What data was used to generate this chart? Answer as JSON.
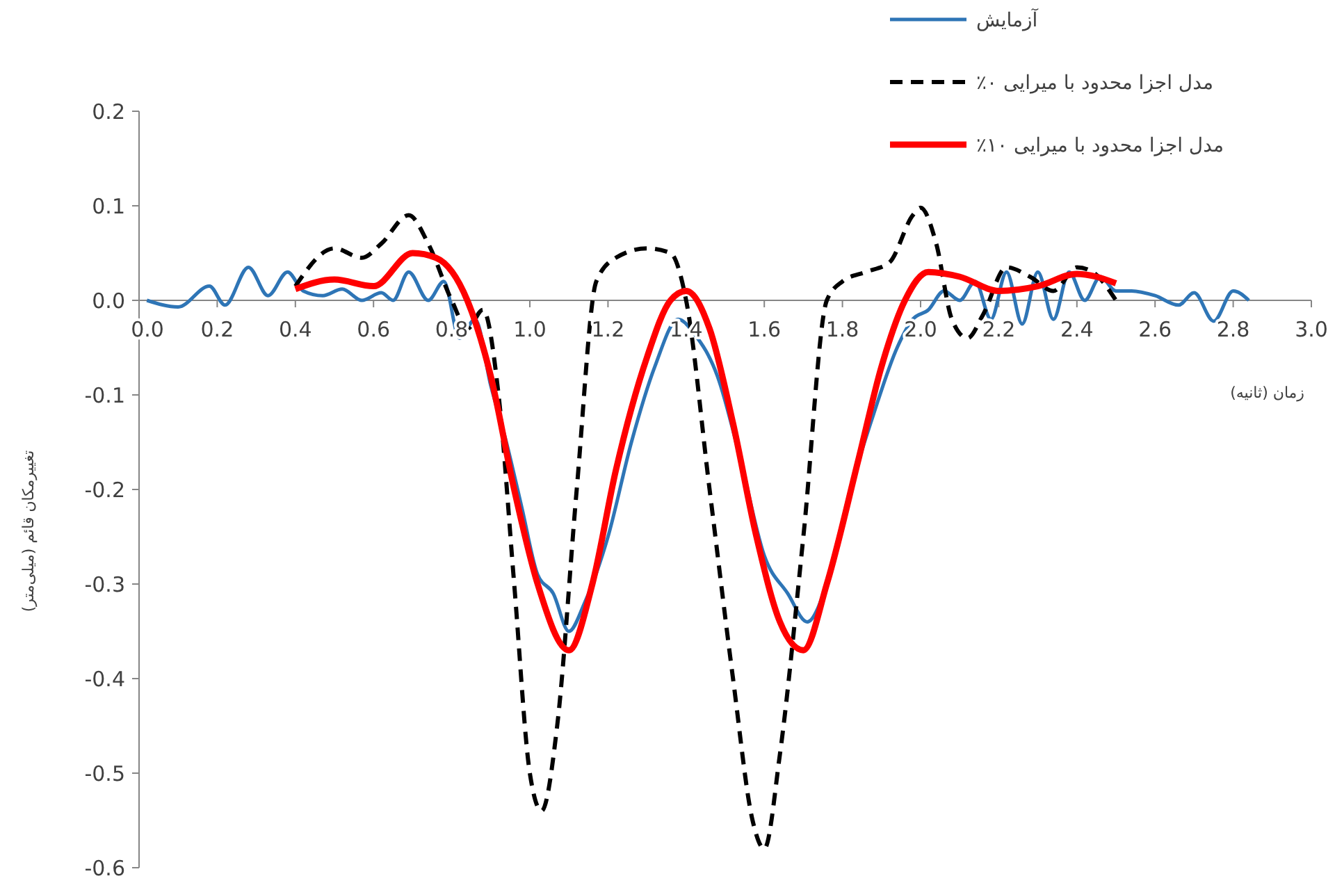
{
  "chart_data": {
    "type": "line",
    "xlabel": "زمان (ثانیه)",
    "ylabel": "تغییرمکان قائم (میلی‌متر)",
    "xlim": [
      0,
      3
    ],
    "ylim": [
      -0.6,
      0.2
    ],
    "xticks": [
      {
        "value": 0,
        "label": "0.0"
      },
      0.2,
      0.4,
      0.6,
      0.8,
      {
        "value": 1,
        "label": "1.0"
      },
      1.2,
      1.4,
      1.6,
      1.8,
      {
        "value": 2,
        "label": "2.0"
      },
      2.2,
      2.4,
      2.6,
      2.8,
      {
        "value": 3,
        "label": "3.0"
      }
    ],
    "yticks": [
      0.2,
      0.1,
      {
        "value": 0,
        "label": "0.0"
      },
      -0.1,
      -0.2,
      -0.3,
      -0.4,
      -0.5,
      -0.6
    ],
    "grid": false,
    "legend": "top right",
    "marker": "none",
    "series": [
      {
        "name": "آزمایش",
        "color": "#2e75b6",
        "line_style": "solid",
        "x": [
          0.02,
          0.1,
          0.18,
          0.22,
          0.28,
          0.33,
          0.38,
          0.42,
          0.47,
          0.52,
          0.57,
          0.62,
          0.65,
          0.69,
          0.74,
          0.78,
          0.82,
          0.86,
          0.9,
          0.94,
          0.98,
          1.02,
          1.06,
          1.1,
          1.14,
          1.2,
          1.26,
          1.32,
          1.38,
          1.42,
          1.48,
          1.54,
          1.6,
          1.66,
          1.71,
          1.76,
          1.82,
          1.88,
          1.94,
          1.98,
          2.02,
          2.06,
          2.1,
          2.14,
          2.18,
          2.22,
          2.26,
          2.3,
          2.34,
          2.38,
          2.42,
          2.46,
          2.5,
          2.54,
          2.6,
          2.66,
          2.7,
          2.75,
          2.8,
          2.84
        ],
        "values": [
          0,
          -0.007,
          0.015,
          -0.005,
          0.035,
          0.005,
          0.03,
          0.01,
          0.005,
          0.012,
          0,
          0.008,
          0,
          0.03,
          0,
          0.02,
          -0.04,
          -0.02,
          -0.09,
          -0.15,
          -0.22,
          -0.29,
          -0.31,
          -0.35,
          -0.32,
          -0.25,
          -0.15,
          -0.07,
          -0.02,
          -0.035,
          -0.08,
          -0.17,
          -0.27,
          -0.31,
          -0.34,
          -0.3,
          -0.2,
          -0.12,
          -0.05,
          -0.02,
          -0.01,
          0.01,
          0,
          0.02,
          -0.02,
          0.03,
          -0.025,
          0.03,
          -0.02,
          0.03,
          0,
          0.025,
          0.01,
          0.01,
          0.005,
          -0.005,
          0.008,
          -0.022,
          0.01,
          0
        ]
      },
      {
        "name": "مدل اجزا محدود با میرایی ۰٪",
        "color": "#000000",
        "line_style": "dashed",
        "x": [
          0.4,
          0.5,
          0.57,
          0.62,
          0.69,
          0.74,
          0.8,
          0.84,
          0.88,
          0.92,
          0.96,
          1.0,
          1.03,
          1.07,
          1.12,
          1.17,
          1.22,
          1.3,
          1.36,
          1.4,
          1.46,
          1.52,
          1.57,
          1.6,
          1.64,
          1.7,
          1.76,
          1.8,
          1.86,
          1.92,
          1.98,
          2.0,
          2.04,
          2.08,
          2.12,
          2.16,
          2.22,
          2.28,
          2.34,
          2.4,
          2.44,
          2.5
        ],
        "values": [
          0.015,
          0.055,
          0.045,
          0.06,
          0.09,
          0.06,
          0,
          -0.03,
          -0.01,
          -0.1,
          -0.3,
          -0.5,
          -0.54,
          -0.45,
          -0.2,
          0.02,
          0.045,
          0.055,
          0.05,
          0,
          -0.2,
          -0.4,
          -0.55,
          -0.58,
          -0.48,
          -0.25,
          0,
          0.02,
          0.03,
          0.04,
          0.09,
          0.098,
          0.06,
          -0.02,
          -0.04,
          -0.015,
          0.035,
          0.025,
          0.01,
          0.035,
          0.03,
          0
        ]
      },
      {
        "name": "مدل اجزا محدود با میرایی ۱۰٪",
        "color": "#ff0000",
        "line_style": "solid",
        "x": [
          0.4,
          0.5,
          0.6,
          0.7,
          0.76,
          0.84,
          0.9,
          0.96,
          1.02,
          1.1,
          1.16,
          1.22,
          1.3,
          1.36,
          1.4,
          1.46,
          1.52,
          1.58,
          1.64,
          1.7,
          1.76,
          1.84,
          1.9,
          1.96,
          2.02,
          2.1,
          2.2,
          2.3,
          2.4,
          2.45,
          2.5
        ],
        "values": [
          0.012,
          0.022,
          0.015,
          0.05,
          0.045,
          0,
          -0.08,
          -0.2,
          -0.3,
          -0.37,
          -0.3,
          -0.18,
          -0.06,
          0,
          0.01,
          -0.03,
          -0.13,
          -0.25,
          -0.34,
          -0.37,
          -0.3,
          -0.17,
          -0.07,
          0,
          0.03,
          0.025,
          0.01,
          0.015,
          0.028,
          0.025,
          0.018
        ]
      }
    ]
  }
}
